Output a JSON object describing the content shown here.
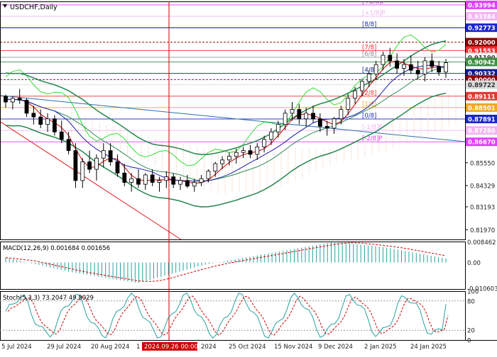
{
  "chart_data": {
    "type": "candlestick",
    "timeframe": "Daily",
    "main": {
      "title": "USDCHF,Daily",
      "y_range": [
        0.8145,
        0.9418
      ],
      "price_ticks": [
        "0.85550",
        "0.84329",
        "0.83193",
        "0.81970"
      ],
      "candles_approx": [
        [
          0.891,
          0.892,
          0.885,
          0.888
        ],
        [
          0.888,
          0.891,
          0.884,
          0.89
        ],
        [
          0.89,
          0.895,
          0.887,
          0.889
        ],
        [
          0.889,
          0.89,
          0.88,
          0.882
        ],
        [
          0.882,
          0.886,
          0.876,
          0.88
        ],
        [
          0.88,
          0.884,
          0.874,
          0.876
        ],
        [
          0.876,
          0.882,
          0.872,
          0.879
        ],
        [
          0.879,
          0.881,
          0.87,
          0.872
        ],
        [
          0.872,
          0.878,
          0.866,
          0.868
        ],
        [
          0.868,
          0.872,
          0.86,
          0.862
        ],
        [
          0.862,
          0.866,
          0.842,
          0.846
        ],
        [
          0.846,
          0.858,
          0.842,
          0.856
        ],
        [
          0.856,
          0.862,
          0.85,
          0.852
        ],
        [
          0.852,
          0.86,
          0.846,
          0.858
        ],
        [
          0.858,
          0.866,
          0.853,
          0.862
        ],
        [
          0.862,
          0.866,
          0.854,
          0.856
        ],
        [
          0.856,
          0.86,
          0.848,
          0.85
        ],
        [
          0.85,
          0.855,
          0.843,
          0.845
        ],
        [
          0.845,
          0.85,
          0.84,
          0.847
        ],
        [
          0.847,
          0.852,
          0.842,
          0.844
        ],
        [
          0.844,
          0.85,
          0.841,
          0.849
        ],
        [
          0.849,
          0.852,
          0.843,
          0.845
        ],
        [
          0.845,
          0.848,
          0.84,
          0.846
        ],
        [
          0.846,
          0.851,
          0.842,
          0.848
        ],
        [
          0.848,
          0.85,
          0.842,
          0.844
        ],
        [
          0.844,
          0.848,
          0.841,
          0.846
        ],
        [
          0.846,
          0.849,
          0.842,
          0.843
        ],
        [
          0.843,
          0.847,
          0.84,
          0.845
        ],
        [
          0.845,
          0.849,
          0.843,
          0.847
        ],
        [
          0.847,
          0.852,
          0.845,
          0.851
        ],
        [
          0.851,
          0.856,
          0.848,
          0.855
        ],
        [
          0.855,
          0.859,
          0.852,
          0.857
        ],
        [
          0.857,
          0.861,
          0.854,
          0.859
        ],
        [
          0.859,
          0.863,
          0.855,
          0.861
        ],
        [
          0.861,
          0.864,
          0.858,
          0.862
        ],
        [
          0.862,
          0.865,
          0.858,
          0.86
        ],
        [
          0.86,
          0.866,
          0.857,
          0.864
        ],
        [
          0.864,
          0.87,
          0.861,
          0.868
        ],
        [
          0.868,
          0.874,
          0.865,
          0.872
        ],
        [
          0.872,
          0.878,
          0.869,
          0.876
        ],
        [
          0.876,
          0.884,
          0.873,
          0.882
        ],
        [
          0.882,
          0.888,
          0.878,
          0.884
        ],
        [
          0.884,
          0.887,
          0.876,
          0.879
        ],
        [
          0.879,
          0.885,
          0.875,
          0.882
        ],
        [
          0.882,
          0.886,
          0.877,
          0.879
        ],
        [
          0.879,
          0.882,
          0.872,
          0.875
        ],
        [
          0.875,
          0.878,
          0.87,
          0.874
        ],
        [
          0.874,
          0.88,
          0.871,
          0.879
        ],
        [
          0.879,
          0.886,
          0.876,
          0.884
        ],
        [
          0.884,
          0.892,
          0.881,
          0.89
        ],
        [
          0.89,
          0.896,
          0.887,
          0.894
        ],
        [
          0.894,
          0.9,
          0.891,
          0.899
        ],
        [
          0.899,
          0.905,
          0.896,
          0.903
        ],
        [
          0.903,
          0.91,
          0.9,
          0.908
        ],
        [
          0.908,
          0.915,
          0.905,
          0.913
        ],
        [
          0.913,
          0.917,
          0.907,
          0.91
        ],
        [
          0.91,
          0.914,
          0.903,
          0.906
        ],
        [
          0.906,
          0.911,
          0.902,
          0.908
        ],
        [
          0.908,
          0.913,
          0.903,
          0.905
        ],
        [
          0.905,
          0.91,
          0.9,
          0.903
        ],
        [
          0.903,
          0.912,
          0.899,
          0.91
        ],
        [
          0.91,
          0.914,
          0.904,
          0.907
        ],
        [
          0.907,
          0.91,
          0.902,
          0.904
        ],
        [
          0.904,
          0.911,
          0.901,
          0.909
        ]
      ],
      "horizontal_levels": [
        {
          "price": 0.93994,
          "label": "0.93994",
          "color": "#e040fb",
          "text_color": "#ffffff",
          "murrey": "[+2/8]P"
        },
        {
          "price": 0.93384,
          "label": "0.93384",
          "color": "#f3b4f2",
          "text_color": "#ffffff",
          "murrey": "[+1/8]P"
        },
        {
          "price": 0.92773,
          "label": "0.92773",
          "color": "#1a27c9",
          "text_color": "#ffffff",
          "murrey": "[8/8]"
        },
        {
          "price": 0.92,
          "label": "0.92000",
          "color": "#8b0000",
          "text_color": "#ffffff",
          "murrey": ""
        },
        {
          "price": 0.91553,
          "label": "0.91553",
          "color": "#ff2a2a",
          "text_color": "#ffffff",
          "murrey": "[7/8]"
        },
        {
          "price": 0.9119,
          "label": "0.91190",
          "color": "#ffffff",
          "text_color": "#333333",
          "murrey": "[6/8]"
        },
        {
          "price": 0.90942,
          "label": "0.90942",
          "color": "#3e8e41",
          "text_color": "#ffffff",
          "murrey": ""
        },
        {
          "price": 0.90332,
          "label": "0.90332",
          "color": "#0b1c8c",
          "text_color": "#ffffff",
          "murrey": "[4/8]"
        },
        {
          "price": 0.9,
          "label": "0.90000",
          "color": "#8b0000",
          "text_color": "#ffffff",
          "murrey": ""
        },
        {
          "price": 0.89722,
          "label": "0.89722",
          "color": "#dcdcdc",
          "text_color": "#333333",
          "murrey": "[3/8]"
        },
        {
          "price": 0.89111,
          "label": "0.89111",
          "color": "#e53935",
          "text_color": "#ffffff",
          "murrey": "[2/8]"
        },
        {
          "price": 0.88501,
          "label": "0.88501",
          "color": "#f5a623",
          "text_color": "#ffffff",
          "murrey": "[1/8]"
        },
        {
          "price": 0.87891,
          "label": "0.87891",
          "color": "#1a27c9",
          "text_color": "#ffffff",
          "murrey": "[0/8]"
        },
        {
          "price": 0.8728,
          "label": "0.87280",
          "color": "#f3b4f2",
          "text_color": "#ffffff",
          "murrey": "[-1/8]P"
        },
        {
          "price": 0.8667,
          "label": "0.86670",
          "color": "#e040fb",
          "text_color": "#ffffff",
          "murrey": "[-2/8]P"
        }
      ]
    },
    "macd": {
      "title": "MACD(12,26,9) 0.001684 0.001656",
      "params": [
        12,
        26,
        9
      ],
      "macd_value": 0.001684,
      "signal_value": 0.001656,
      "ticks": [
        "0.008462",
        "0.00",
        "-0.010603"
      ],
      "y_range": [
        -0.0109,
        0.0086
      ]
    },
    "stoch": {
      "title": "Stoch(5,3,3) 73.2047 49.8029",
      "params": [
        5,
        3,
        3
      ],
      "k_value": 73.2047,
      "d_value": 49.8029,
      "ticks": [
        "100",
        "80",
        "20",
        "0"
      ],
      "y_range": [
        0,
        100
      ]
    },
    "x_labels": [
      "5 Jul 2024",
      "29 Jul 2024",
      "20 Aug 2024",
      "1",
      "2024.09.26 00:00",
      "2024",
      "25 Oct 2024",
      "15 Nov 2024",
      "9 Dec 2024",
      "2 Jan 2025",
      "24 Jan 2025"
    ],
    "crosshair": {
      "time_label": "2024.09.26 00:00"
    },
    "colors": {
      "candle": "#000000",
      "bollinger": "#2e8b57",
      "upper_env": "#33dd33",
      "ichimoku_cloud": "#e8a880",
      "ma_red": "#cc0000",
      "ma_blue": "#1a1aaa",
      "macd_hist": "#2aa0a0",
      "signal": "#cc0000",
      "stoch_main": "#2aa0a0",
      "stoch_signal": "#cc0000",
      "crosshair": "#cc0000"
    }
  }
}
